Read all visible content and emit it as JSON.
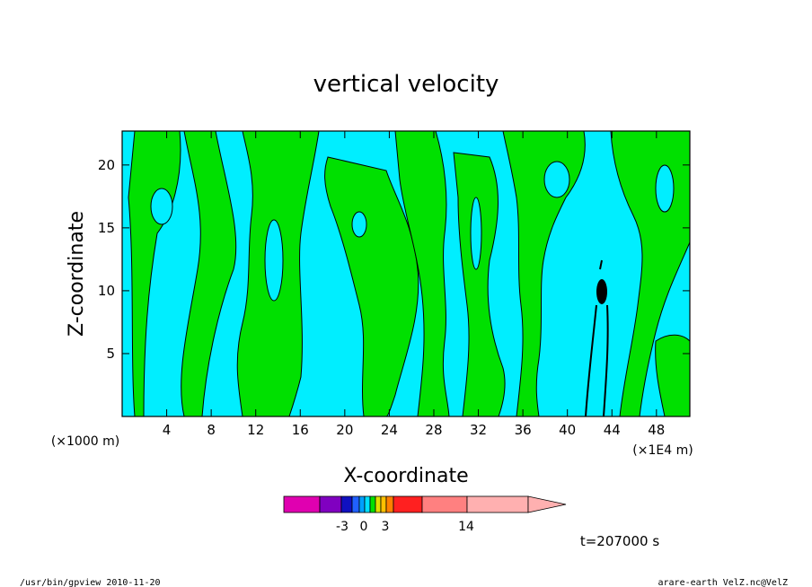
{
  "chart_data": {
    "type": "heatmap",
    "title": "vertical velocity",
    "xlabel": "X-coordinate",
    "ylabel": "Z-coordinate",
    "x_unit_left": "(×1000 m)",
    "x_unit_right": "(×1E4 m)",
    "x_ticks": [
      4,
      8,
      12,
      16,
      20,
      24,
      28,
      32,
      36,
      40,
      44,
      48
    ],
    "y_ticks": [
      5,
      10,
      15,
      20
    ],
    "xlim": [
      0,
      51
    ],
    "ylim": [
      0,
      22.7
    ],
    "colorbar": {
      "tick_labels": [
        "-3",
        "0",
        "3",
        "14"
      ],
      "tick_values": [
        -3,
        0,
        3,
        14
      ],
      "colors": [
        "#e000b0",
        "#8000c0",
        "#1010c0",
        "#2060ff",
        "#00a0ff",
        "#00e0ff",
        "#00e000",
        "#e0e000",
        "#ffc000",
        "#ff8000",
        "#ff2020",
        "#ff8080",
        "#ffb0b0"
      ]
    },
    "legend_colors": {
      "positive": "#00e000",
      "negative": "#00eeff",
      "strong": "#000000"
    },
    "time_label": "t=207000 s"
  },
  "footer": {
    "left": "/usr/bin/gpview   2010-11-20",
    "right": "arare-earth_VelZ.nc@VelZ"
  }
}
